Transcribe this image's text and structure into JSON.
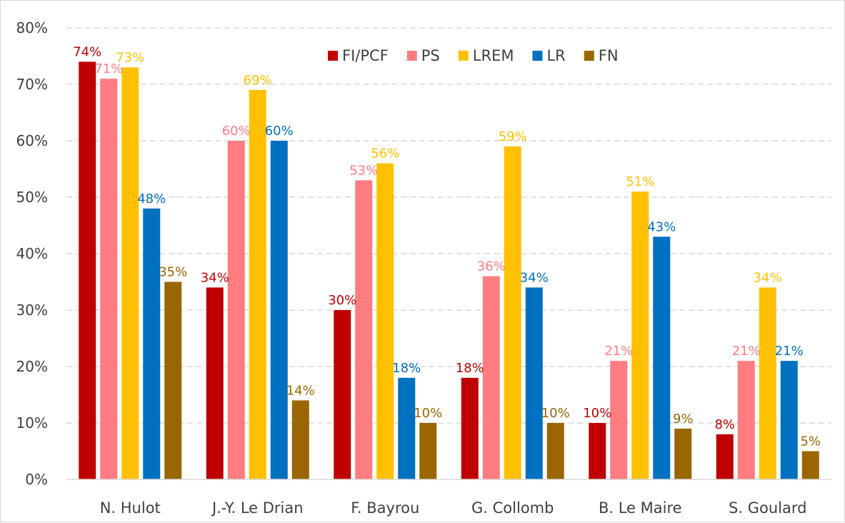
{
  "chart_data": {
    "type": "bar",
    "title": "",
    "xlabel": "",
    "ylabel": "",
    "ylim": [
      0,
      80
    ],
    "yticks": [
      "0%",
      "10%",
      "20%",
      "30%",
      "40%",
      "50%",
      "60%",
      "70%",
      "80%"
    ],
    "grid": true,
    "legend_position": "top-right",
    "categories": [
      "N. Hulot",
      "J.-Y. Le Drian",
      "F. Bayrou",
      "G. Collomb",
      "B. Le Maire",
      "S. Goulard"
    ],
    "series": [
      {
        "name": "FI/PCF",
        "color": "#c00000",
        "values": [
          74,
          34,
          30,
          18,
          10,
          8
        ],
        "labels": [
          "74%",
          "34%",
          "30%",
          "18%",
          "10%",
          "8%"
        ]
      },
      {
        "name": "PS",
        "color": "#ff7c80",
        "values": [
          71,
          60,
          53,
          36,
          21,
          21
        ],
        "labels": [
          "71%",
          "60%",
          "53%",
          "36%",
          "21%",
          "21%"
        ]
      },
      {
        "name": "LREM",
        "color": "#ffc000",
        "values": [
          73,
          69,
          56,
          59,
          51,
          34
        ],
        "labels": [
          "73%",
          "69%",
          "56%",
          "59%",
          "51%",
          "34%"
        ]
      },
      {
        "name": "LR",
        "color": "#0070c0",
        "values": [
          48,
          60,
          18,
          34,
          43,
          21
        ],
        "labels": [
          "48%",
          "60%",
          "18%",
          "34%",
          "43%",
          "21%"
        ]
      },
      {
        "name": "FN",
        "color": "#996600",
        "values": [
          35,
          14,
          10,
          10,
          9,
          5
        ],
        "labels": [
          "35%",
          "14%",
          "10%",
          "10%",
          "9%",
          "5%"
        ]
      }
    ]
  }
}
